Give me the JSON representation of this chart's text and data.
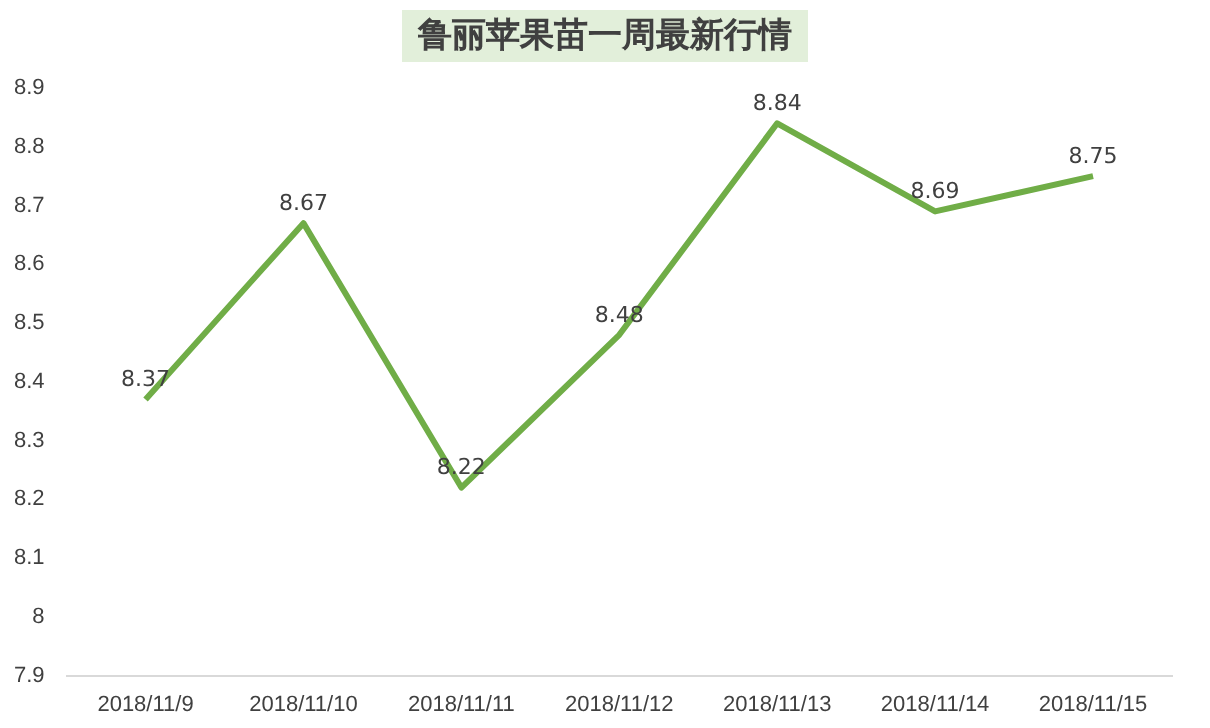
{
  "chart_data": {
    "type": "line",
    "title": "鲁丽苹果苗一周最新行情",
    "categories": [
      "2018/11/9",
      "2018/11/10",
      "2018/11/11",
      "2018/11/12",
      "2018/11/13",
      "2018/11/14",
      "2018/11/15"
    ],
    "values": [
      8.37,
      8.67,
      8.22,
      8.48,
      8.84,
      8.69,
      8.75
    ],
    "color": "#70ad47",
    "ylim": [
      7.9,
      8.9
    ],
    "yticks": [
      7.9,
      8,
      8.1,
      8.2,
      8.3,
      8.4,
      8.5,
      8.6,
      8.7,
      8.8,
      8.9
    ],
    "grid": false,
    "legend": false,
    "marker": "none",
    "data_labels": true
  }
}
